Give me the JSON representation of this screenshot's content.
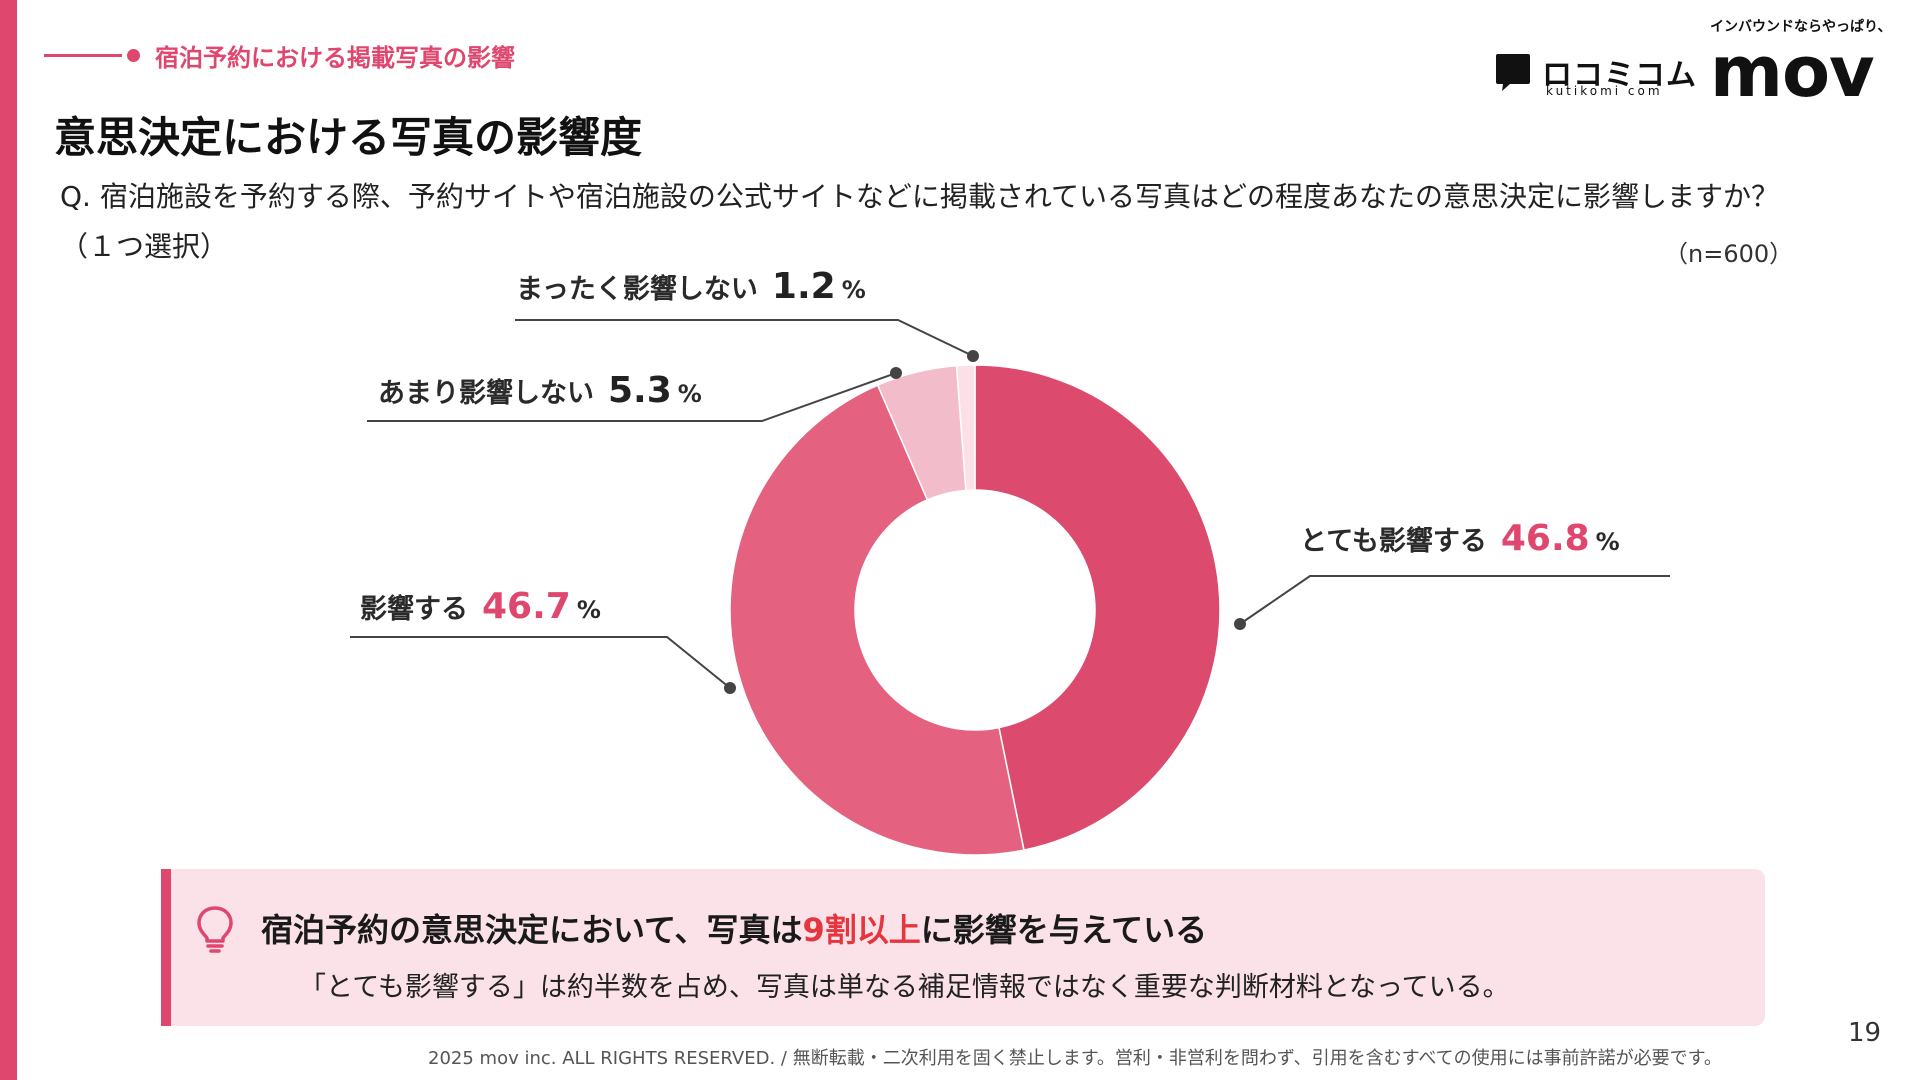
{
  "header": {
    "section_label": "宿泊予約における掲載写真の影響",
    "title": "意思決定における写真の影響度",
    "question": "Q. 宿泊施設を予約する際、予約サイトや宿泊施設の公式サイトなどに掲載されている写真はどの程度あなたの意思決定に影響しますか？（１つ選択）",
    "sample_size": "（n=600）"
  },
  "logos": {
    "kutikomi_name": "ロコミコム",
    "kutikomi_sub": "kutikomi com",
    "mov_tagline": "インバウンドならやっぱり、",
    "mov_name": "mov"
  },
  "chart_data": {
    "type": "pie",
    "style": "donut",
    "unit": "%",
    "categories": [
      "とても影響する",
      "影響する",
      "あまり影響しない",
      "まったく影響しない"
    ],
    "values": [
      46.8,
      46.7,
      5.3,
      1.2
    ],
    "value_labels": [
      "46.8",
      "46.7",
      "5.3",
      "1.2"
    ],
    "colors": [
      "#dc4a6d",
      "#e4627f",
      "#f3bccb",
      "#fbe0e8"
    ],
    "value_label_colors": [
      "#e0476f",
      "#e0476f",
      "#222222",
      "#222222"
    ],
    "percent_symbol": "%"
  },
  "callout": {
    "headline_before": "宿泊予約の意思決定において、写真は",
    "headline_highlight": "9割以上",
    "headline_after": "に影響を与えている",
    "body": "「とても影響する」は約半数を占め、写真は単なる補足情報ではなく重要な判断材料となっている。",
    "highlight_color": "#e5363d",
    "icon": "lightbulb-icon"
  },
  "footer": {
    "copyright": "2025 mov inc. ALL RIGHTS RESERVED. / 無断転載・二次利用を固く禁止します。営利・非営利を問わず、引用を含むすべての使用には事前許諾が必要です。",
    "page_number": "19"
  },
  "colors": {
    "accent": "#e0476f",
    "callout_bg": "#fbe1e8"
  }
}
